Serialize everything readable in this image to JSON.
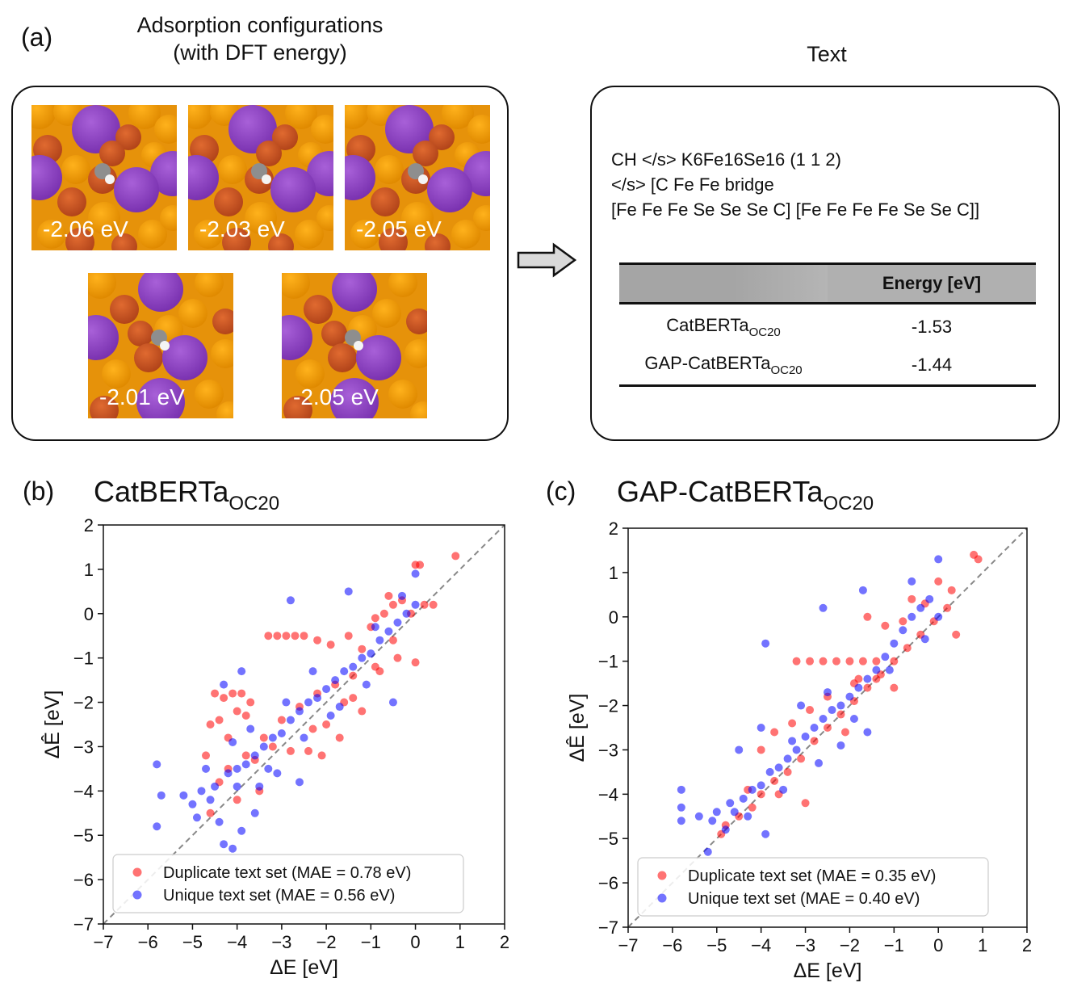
{
  "panel_a": {
    "label": "(a)",
    "heading_line1": "Adsorption configurations",
    "heading_line2": "(with DFT energy)",
    "energies": [
      "-2.06 eV",
      "-2.03 eV",
      "-2.05 eV",
      "-2.01 eV",
      "-2.05 eV"
    ]
  },
  "text_panel": {
    "heading": "Text",
    "line1": "CH </s> K6Fe16Se16 (1 1 2)",
    "line2": "</s> [C Fe Fe bridge",
    "line3": "[Fe Fe Fe Se Se Se C] [Fe Fe Fe Fe Se Se C]]",
    "table": {
      "header": "Energy [eV]",
      "rows": [
        {
          "name": "CatBERTa",
          "sub": "OC20",
          "value": "-1.53"
        },
        {
          "name": "GAP-CatBERTa",
          "sub": "OC20",
          "value": "-1.44"
        }
      ]
    }
  },
  "panel_b": {
    "label": "(b)",
    "title": "CatBERTa",
    "title_sub": "OC20"
  },
  "panel_c": {
    "label": "(c)",
    "title": "GAP-CatBERTa",
    "title_sub": "OC20"
  },
  "colors": {
    "duplicate": "#ff0000",
    "unique": "#0000ff",
    "k_atom": "#8a3fc0",
    "se_atom": "#f5a000",
    "fe_atom": "#d2561c"
  },
  "chart_data": [
    {
      "type": "scatter",
      "title": "CatBERTa_OC20",
      "xlabel": "ΔE [eV]",
      "ylabel": "ΔÊ [eV]",
      "xlim": [
        -7,
        2
      ],
      "ylim": [
        -7,
        2
      ],
      "ticks": [
        "−7",
        "−6",
        "−5",
        "−4",
        "−3",
        "−2",
        "−1",
        "0",
        "1",
        "2"
      ],
      "diagonal": true,
      "legend_position": "lower-right",
      "series": [
        {
          "name": "Duplicate text set (MAE = 0.78 eV)",
          "color": "#ff0000",
          "points": [
            [
              -4.5,
              -1.8
            ],
            [
              -4.3,
              -1.9
            ],
            [
              -4.1,
              -1.8
            ],
            [
              -3.9,
              -1.8
            ],
            [
              -4.6,
              -2.5
            ],
            [
              -4.4,
              -2.4
            ],
            [
              -4.0,
              -2.2
            ],
            [
              -3.8,
              -2.3
            ],
            [
              -4.7,
              -3.2
            ],
            [
              -4.2,
              -3.5
            ],
            [
              -3.6,
              -3.3
            ],
            [
              -3.2,
              -3.0
            ],
            [
              -2.8,
              -3.1
            ],
            [
              -2.4,
              -3.1
            ],
            [
              -2.1,
              -3.2
            ],
            [
              -3.3,
              -0.5
            ],
            [
              -3.1,
              -0.5
            ],
            [
              -2.9,
              -0.5
            ],
            [
              -2.7,
              -0.5
            ],
            [
              -2.5,
              -0.5
            ],
            [
              -2.2,
              -0.6
            ],
            [
              -1.9,
              -0.7
            ],
            [
              -1.5,
              -0.5
            ],
            [
              -1.2,
              -0.8
            ],
            [
              -1.0,
              -0.3
            ],
            [
              -0.9,
              -0.1
            ],
            [
              -0.7,
              0.0
            ],
            [
              -0.5,
              0.2
            ],
            [
              -0.3,
              0.3
            ],
            [
              -0.1,
              0.0
            ],
            [
              0.0,
              1.1
            ],
            [
              0.1,
              1.1
            ],
            [
              0.9,
              1.3
            ],
            [
              0.4,
              0.2
            ],
            [
              0.2,
              0.2
            ],
            [
              -0.5,
              -0.6
            ],
            [
              -0.9,
              -1.2
            ],
            [
              -1.4,
              -1.4
            ],
            [
              -1.8,
              -1.6
            ],
            [
              -2.2,
              -1.8
            ],
            [
              -2.6,
              -2.1
            ],
            [
              -3.0,
              -2.4
            ],
            [
              -3.4,
              -2.8
            ],
            [
              -3.8,
              -3.2
            ],
            [
              -4.4,
              -3.8
            ],
            [
              -4.6,
              -4.5
            ],
            [
              -4.0,
              -4.2
            ],
            [
              -3.5,
              -4.0
            ],
            [
              -1.6,
              -2.0
            ],
            [
              -1.2,
              -2.2
            ],
            [
              -0.8,
              -1.3
            ],
            [
              -0.4,
              -1.0
            ],
            [
              0.0,
              -1.1
            ],
            [
              -2.0,
              -2.5
            ],
            [
              -1.7,
              -2.8
            ],
            [
              -3.7,
              -2.0
            ],
            [
              -4.2,
              -2.8
            ],
            [
              -2.3,
              -2.6
            ],
            [
              -1.4,
              -1.9
            ],
            [
              -0.6,
              0.4
            ]
          ]
        },
        {
          "name": "Unique text set (MAE = 0.56 eV)",
          "color": "#0000ff",
          "points": [
            [
              -5.8,
              -3.4
            ],
            [
              -5.8,
              -4.8
            ],
            [
              -5.7,
              -4.1
            ],
            [
              -5.2,
              -4.1
            ],
            [
              -5.0,
              -4.3
            ],
            [
              -4.8,
              -4.0
            ],
            [
              -4.6,
              -4.2
            ],
            [
              -4.4,
              -4.7
            ],
            [
              -4.3,
              -5.2
            ],
            [
              -4.1,
              -5.3
            ],
            [
              -4.5,
              -3.9
            ],
            [
              -4.2,
              -3.6
            ],
            [
              -4.0,
              -3.5
            ],
            [
              -3.8,
              -3.4
            ],
            [
              -3.6,
              -3.2
            ],
            [
              -3.4,
              -3.0
            ],
            [
              -3.2,
              -2.8
            ],
            [
              -3.0,
              -2.7
            ],
            [
              -2.8,
              -2.4
            ],
            [
              -2.6,
              -2.2
            ],
            [
              -2.4,
              -2.0
            ],
            [
              -2.2,
              -1.9
            ],
            [
              -2.0,
              -1.7
            ],
            [
              -1.8,
              -1.5
            ],
            [
              -1.6,
              -1.3
            ],
            [
              -1.4,
              -1.2
            ],
            [
              -1.2,
              -1.0
            ],
            [
              -1.0,
              -0.9
            ],
            [
              -0.8,
              -0.6
            ],
            [
              -0.6,
              -0.4
            ],
            [
              -0.4,
              -0.2
            ],
            [
              -0.2,
              0.0
            ],
            [
              0.0,
              0.2
            ],
            [
              0.0,
              0.9
            ],
            [
              -2.8,
              0.3
            ],
            [
              -1.5,
              0.5
            ],
            [
              -0.5,
              -2.0
            ],
            [
              -3.9,
              -1.3
            ],
            [
              -4.3,
              -1.6
            ],
            [
              -3.5,
              -3.9
            ],
            [
              -2.6,
              -3.8
            ],
            [
              -3.6,
              -4.5
            ],
            [
              -3.9,
              -4.9
            ],
            [
              -4.7,
              -3.5
            ],
            [
              -4.9,
              -4.6
            ],
            [
              -2.9,
              -2.0
            ],
            [
              -2.3,
              -1.3
            ],
            [
              -1.9,
              -2.3
            ],
            [
              -1.1,
              -1.6
            ],
            [
              -0.3,
              0.4
            ],
            [
              -0.9,
              -0.3
            ],
            [
              -3.3,
              -3.5
            ],
            [
              -4.0,
              -3.9
            ],
            [
              -3.1,
              -3.6
            ],
            [
              -2.5,
              -2.8
            ],
            [
              -1.7,
              -2.1
            ],
            [
              -3.7,
              -2.6
            ],
            [
              -4.1,
              -2.9
            ]
          ]
        }
      ]
    },
    {
      "type": "scatter",
      "title": "GAP-CatBERTa_OC20",
      "xlabel": "ΔE [eV]",
      "ylabel": "ΔÊ [eV]",
      "xlim": [
        -7,
        2
      ],
      "ylim": [
        -7,
        2
      ],
      "ticks": [
        "−7",
        "−6",
        "−5",
        "−4",
        "−3",
        "−2",
        "−1",
        "0",
        "1",
        "2"
      ],
      "diagonal": true,
      "legend_position": "lower-right",
      "series": [
        {
          "name": "Duplicate text set (MAE = 0.35 eV)",
          "color": "#ff0000",
          "points": [
            [
              -4.8,
              -4.7
            ],
            [
              -4.5,
              -4.5
            ],
            [
              -4.2,
              -4.3
            ],
            [
              -4.0,
              -4.0
            ],
            [
              -3.7,
              -3.7
            ],
            [
              -3.4,
              -3.5
            ],
            [
              -3.1,
              -3.2
            ],
            [
              -2.8,
              -2.8
            ],
            [
              -2.5,
              -2.5
            ],
            [
              -2.2,
              -2.2
            ],
            [
              -1.9,
              -1.9
            ],
            [
              -1.6,
              -1.6
            ],
            [
              -1.3,
              -1.3
            ],
            [
              -1.0,
              -1.0
            ],
            [
              -0.7,
              -0.7
            ],
            [
              -0.4,
              -0.4
            ],
            [
              -0.1,
              -0.1
            ],
            [
              0.2,
              0.2
            ],
            [
              -3.2,
              -1.0
            ],
            [
              -2.9,
              -1.0
            ],
            [
              -2.6,
              -1.0
            ],
            [
              -2.3,
              -1.0
            ],
            [
              -2.0,
              -1.0
            ],
            [
              -1.7,
              -1.0
            ],
            [
              -1.4,
              -1.0
            ],
            [
              -1.2,
              -0.2
            ],
            [
              -1.6,
              0.0
            ],
            [
              -0.6,
              0.4
            ],
            [
              0.0,
              0.8
            ],
            [
              0.8,
              1.4
            ],
            [
              0.9,
              1.3
            ],
            [
              0.3,
              0.6
            ],
            [
              -0.3,
              0.3
            ],
            [
              -1.0,
              -1.6
            ],
            [
              -3.0,
              -4.2
            ],
            [
              -3.6,
              -4.0
            ],
            [
              -4.3,
              -3.9
            ],
            [
              -2.1,
              -2.6
            ],
            [
              -2.9,
              -2.1
            ],
            [
              -3.3,
              -2.4
            ],
            [
              -2.5,
              -1.8
            ],
            [
              -1.8,
              -1.4
            ],
            [
              -0.8,
              -0.1
            ],
            [
              0.4,
              -0.4
            ],
            [
              -4.0,
              -3.0
            ],
            [
              -3.7,
              -2.6
            ],
            [
              -4.9,
              -4.9
            ],
            [
              -1.9,
              -1.5
            ],
            [
              -1.4,
              -1.4
            ]
          ]
        },
        {
          "name": "Unique text set (MAE = 0.40 eV)",
          "color": "#0000ff",
          "points": [
            [
              -5.8,
              -3.9
            ],
            [
              -5.8,
              -4.3
            ],
            [
              -5.8,
              -4.6
            ],
            [
              -5.4,
              -4.5
            ],
            [
              -5.2,
              -5.3
            ],
            [
              -5.0,
              -4.4
            ],
            [
              -4.8,
              -4.8
            ],
            [
              -4.6,
              -4.4
            ],
            [
              -4.4,
              -4.1
            ],
            [
              -4.2,
              -3.9
            ],
            [
              -4.0,
              -3.8
            ],
            [
              -3.8,
              -3.5
            ],
            [
              -3.6,
              -3.4
            ],
            [
              -3.4,
              -3.2
            ],
            [
              -3.2,
              -3.0
            ],
            [
              -3.0,
              -2.7
            ],
            [
              -2.8,
              -2.5
            ],
            [
              -2.6,
              -2.3
            ],
            [
              -2.4,
              -2.1
            ],
            [
              -2.2,
              -2.0
            ],
            [
              -2.0,
              -1.8
            ],
            [
              -1.8,
              -1.6
            ],
            [
              -1.6,
              -1.4
            ],
            [
              -1.4,
              -1.2
            ],
            [
              -1.2,
              -0.9
            ],
            [
              -1.0,
              -0.6
            ],
            [
              -0.8,
              -0.3
            ],
            [
              -0.6,
              0.0
            ],
            [
              -0.4,
              0.2
            ],
            [
              -0.2,
              0.4
            ],
            [
              0.0,
              1.3
            ],
            [
              -0.6,
              0.8
            ],
            [
              -2.6,
              0.2
            ],
            [
              -3.9,
              -0.6
            ],
            [
              -1.7,
              0.6
            ],
            [
              -4.0,
              -2.5
            ],
            [
              -4.5,
              -3.0
            ],
            [
              -3.1,
              -2.0
            ],
            [
              -2.2,
              -2.9
            ],
            [
              -1.6,
              -2.6
            ],
            [
              -3.9,
              -4.9
            ],
            [
              -4.3,
              -4.5
            ],
            [
              -3.5,
              -3.9
            ],
            [
              -2.7,
              -3.3
            ],
            [
              -4.7,
              -4.2
            ],
            [
              -5.1,
              -4.6
            ],
            [
              -3.3,
              -2.8
            ],
            [
              -2.5,
              -1.7
            ],
            [
              -1.9,
              -2.3
            ],
            [
              -1.1,
              -1.2
            ],
            [
              0.0,
              0.0
            ],
            [
              -0.3,
              -0.5
            ]
          ]
        }
      ]
    }
  ]
}
